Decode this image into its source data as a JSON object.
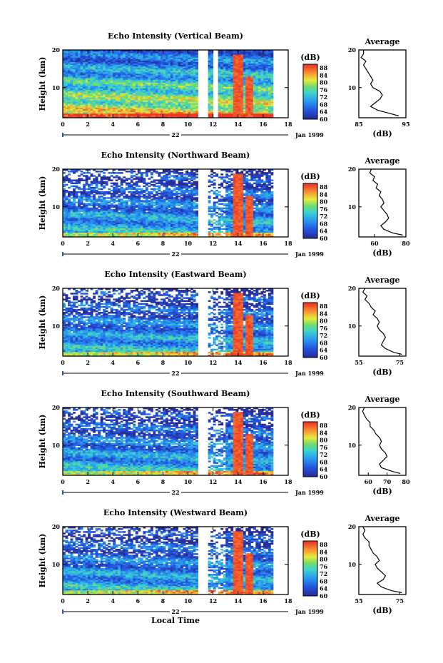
{
  "chart_data": [
    {
      "type": "heatmap",
      "title": "Echo Intensity (Vertical Beam)",
      "ylabel": "Height (km)",
      "xlim": [
        0,
        18
      ],
      "ylim": [
        2,
        20
      ],
      "xticks": [
        "0",
        "2",
        "4",
        "6",
        "8",
        "10",
        "12",
        "14",
        "16",
        "18"
      ],
      "yticks": [
        "10",
        "20"
      ],
      "date_day": "22",
      "date_label": "Jan 1999",
      "colorbar_label": "(dB)",
      "colorbar_ticks": [
        "60",
        "64",
        "68",
        "72",
        "76",
        "80",
        "84",
        "88"
      ],
      "zlim": [
        60,
        90
      ],
      "data_gap_hours": [
        [
          10.8,
          11.5
        ],
        [
          12.1,
          12.4
        ]
      ],
      "data_end_hour": 16.8,
      "convective_cores_hours": [
        [
          13.7,
          14.3
        ],
        [
          14.7,
          15.2
        ]
      ],
      "average_profile": {
        "title": "Average",
        "xlabel": "(dB)",
        "xlim": [
          85,
          95
        ],
        "xticks": [
          "85",
          "95"
        ],
        "yticks": [
          "10",
          "20"
        ],
        "height_km": [
          2.5,
          3,
          4,
          5,
          6,
          7,
          8,
          9,
          10,
          11,
          12,
          13,
          14,
          15,
          16,
          17,
          18,
          19,
          20
        ],
        "db": [
          93.5,
          92,
          89,
          87.5,
          88.5,
          89.5,
          90,
          89.5,
          88,
          87.5,
          88,
          87.5,
          87,
          86.5,
          86,
          86.5,
          85.5,
          86,
          86
        ]
      }
    },
    {
      "type": "heatmap",
      "title": "Echo Intensity (Northward Beam)",
      "ylabel": "Height (km)",
      "xlim": [
        0,
        18
      ],
      "ylim": [
        2,
        20
      ],
      "xticks": [
        "0",
        "2",
        "4",
        "6",
        "8",
        "10",
        "12",
        "14",
        "16",
        "18"
      ],
      "yticks": [
        "10",
        "20"
      ],
      "date_day": "22",
      "date_label": "Jan 1999",
      "colorbar_label": "(dB)",
      "colorbar_ticks": [
        "60",
        "64",
        "68",
        "72",
        "76",
        "80",
        "84",
        "88"
      ],
      "zlim": [
        60,
        90
      ],
      "data_gap_hours": [
        [
          10.8,
          11.5
        ]
      ],
      "data_end_hour": 16.8,
      "convective_cores_hours": [
        [
          13.7,
          14.3
        ],
        [
          14.7,
          15.2
        ]
      ],
      "average_profile": {
        "title": "Average",
        "xlabel": "(dB)",
        "xlim": [
          50,
          80
        ],
        "xticks": [
          "60",
          "80"
        ],
        "yticks": [
          "10",
          "20"
        ],
        "height_km": [
          2.5,
          3,
          4,
          5,
          6,
          7,
          8,
          9,
          10,
          11,
          12,
          13,
          14,
          15,
          16,
          17,
          18,
          19,
          20
        ],
        "db": [
          78,
          72,
          66,
          64,
          67,
          69,
          68,
          66,
          64,
          66,
          65,
          63,
          64,
          61,
          62,
          59,
          60,
          57,
          58
        ]
      }
    },
    {
      "type": "heatmap",
      "title": "Echo Intensity (Eastward Beam)",
      "ylabel": "Height (km)",
      "xlim": [
        0,
        18
      ],
      "ylim": [
        2,
        20
      ],
      "xticks": [
        "0",
        "2",
        "4",
        "6",
        "8",
        "10",
        "12",
        "14",
        "16",
        "18"
      ],
      "yticks": [
        "10",
        "20"
      ],
      "date_day": "22",
      "date_label": "Jan 1999",
      "colorbar_label": "(dB)",
      "colorbar_ticks": [
        "60",
        "64",
        "68",
        "72",
        "76",
        "80",
        "84",
        "88"
      ],
      "zlim": [
        60,
        90
      ],
      "data_gap_hours": [
        [
          10.8,
          11.5
        ]
      ],
      "data_end_hour": 16.8,
      "convective_cores_hours": [
        [
          13.7,
          14.3
        ],
        [
          14.7,
          15.2
        ]
      ],
      "average_profile": {
        "title": "Average",
        "xlabel": "(dB)",
        "xlim": [
          55,
          78
        ],
        "xticks": [
          "55",
          "75"
        ],
        "yticks": [
          "10",
          "20"
        ],
        "height_km": [
          2.5,
          3,
          4,
          5,
          6,
          7,
          8,
          9,
          10,
          11,
          12,
          13,
          14,
          15,
          16,
          17,
          18,
          19,
          20
        ],
        "db": [
          76,
          72,
          68,
          66,
          67,
          68,
          67,
          65,
          64,
          65,
          64,
          62,
          63,
          61,
          60,
          58,
          59,
          57,
          58
        ]
      }
    },
    {
      "type": "heatmap",
      "title": "Echo Intensity (Southward Beam)",
      "ylabel": "Height (km)",
      "xlim": [
        0,
        18
      ],
      "ylim": [
        2,
        20
      ],
      "xticks": [
        "0",
        "2",
        "4",
        "6",
        "8",
        "10",
        "12",
        "14",
        "16",
        "18"
      ],
      "yticks": [
        "10",
        "20"
      ],
      "date_day": "22",
      "date_label": "Jan 1999",
      "colorbar_label": "(dB)",
      "colorbar_ticks": [
        "60",
        "64",
        "68",
        "72",
        "76",
        "80",
        "84",
        "88"
      ],
      "zlim": [
        60,
        90
      ],
      "data_gap_hours": [
        [
          10.8,
          11.5
        ]
      ],
      "data_end_hour": 16.8,
      "convective_cores_hours": [
        [
          13.7,
          14.3
        ],
        [
          14.7,
          15.2
        ]
      ],
      "average_profile": {
        "title": "Average",
        "xlabel": "(dB)",
        "xlim": [
          55,
          80
        ],
        "xticks": [
          "60",
          "70",
          "80"
        ],
        "yticks": [
          "10",
          "20"
        ],
        "height_km": [
          2.5,
          3,
          4,
          5,
          6,
          7,
          8,
          9,
          10,
          11,
          12,
          13,
          14,
          15,
          16,
          17,
          18,
          19,
          20
        ],
        "db": [
          77,
          73,
          67,
          66,
          68,
          70,
          69,
          67,
          66,
          67,
          66,
          64,
          63,
          61,
          61,
          59,
          58,
          57,
          58
        ]
      }
    },
    {
      "type": "heatmap",
      "title": "Echo Intensity (Westward Beam)",
      "ylabel": "Height (km)",
      "xlabel": "Local Time",
      "xlim": [
        0,
        18
      ],
      "ylim": [
        2,
        20
      ],
      "xticks": [
        "0",
        "2",
        "4",
        "6",
        "8",
        "10",
        "12",
        "14",
        "16",
        "18"
      ],
      "yticks": [
        "10",
        "20"
      ],
      "date_day": "22",
      "date_label": "Jan 1999",
      "colorbar_label": "(dB)",
      "colorbar_ticks": [
        "60",
        "64",
        "68",
        "72",
        "76",
        "80",
        "84",
        "88"
      ],
      "zlim": [
        60,
        90
      ],
      "data_gap_hours": [
        [
          10.8,
          11.5
        ]
      ],
      "data_end_hour": 16.8,
      "convective_cores_hours": [
        [
          13.7,
          14.3
        ],
        [
          14.7,
          15.2
        ]
      ],
      "average_profile": {
        "title": "Average",
        "xlabel": "(dB)",
        "xlim": [
          55,
          78
        ],
        "xticks": [
          "55",
          "75"
        ],
        "yticks": [
          "10",
          "20"
        ],
        "height_km": [
          2.5,
          3,
          4,
          5,
          6,
          7,
          8,
          9,
          10,
          11,
          12,
          13,
          14,
          15,
          16,
          17,
          18,
          19,
          20
        ],
        "db": [
          76,
          71,
          66,
          64,
          67,
          68,
          66,
          64,
          63,
          65,
          64,
          62,
          61,
          60,
          60,
          58,
          57,
          58,
          57
        ]
      }
    }
  ]
}
